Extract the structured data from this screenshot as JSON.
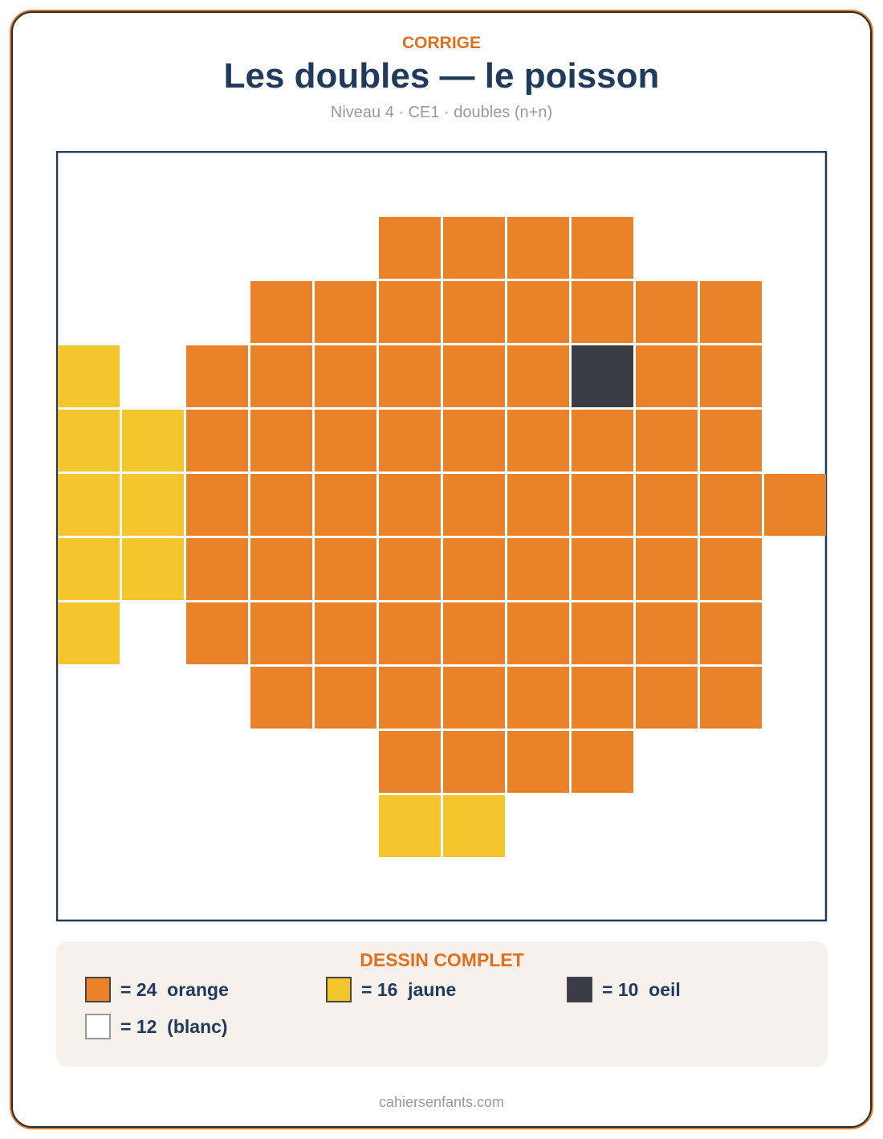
{
  "header": {
    "label": "CORRIGE",
    "title": "Les doubles — le poisson",
    "subtitle": "Niveau 4 · CE1 · doubles (n+n)"
  },
  "legend": {
    "title": "DESSIN COMPLET",
    "items": [
      "= 24  orange",
      "= 16  jaune",
      "= 10  oeil",
      "= 12  (blanc)"
    ]
  },
  "footer": "cahiersenfants.com"
}
